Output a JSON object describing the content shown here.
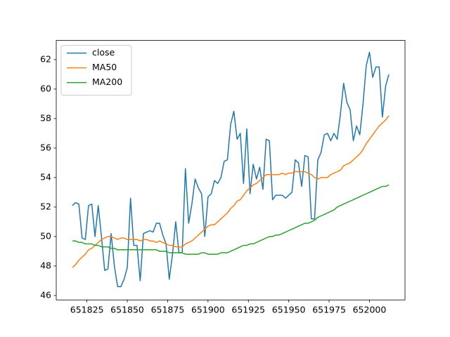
{
  "chart_data": {
    "type": "line",
    "x": [
      651816,
      651818,
      651820,
      651822,
      651824,
      651826,
      651828,
      651830,
      651832,
      651834,
      651836,
      651838,
      651840,
      651842,
      651844,
      651846,
      651848,
      651850,
      651852,
      651854,
      651856,
      651858,
      651860,
      651862,
      651864,
      651866,
      651868,
      651870,
      651872,
      651874,
      651876,
      651878,
      651880,
      651882,
      651884,
      651886,
      651888,
      651890,
      651892,
      651894,
      651896,
      651898,
      651900,
      651902,
      651904,
      651906,
      651908,
      651910,
      651912,
      651914,
      651916,
      651918,
      651920,
      651922,
      651924,
      651926,
      651928,
      651930,
      651932,
      651934,
      651936,
      651938,
      651940,
      651942,
      651944,
      651946,
      651948,
      651950,
      651952,
      651954,
      651956,
      651958,
      651960,
      651962,
      651964,
      651966,
      651968,
      651970,
      651972,
      651974,
      651976,
      651978,
      651980,
      651982,
      651984,
      651986,
      651988,
      651990,
      651992,
      651994,
      651996,
      651998,
      652000,
      652002,
      652004,
      652006,
      652008,
      652010,
      652012
    ],
    "series": [
      {
        "name": "close",
        "color": "#1f77b4",
        "values": [
          52.1,
          52.3,
          52.2,
          49.9,
          49.8,
          52.1,
          52.2,
          50.0,
          52.1,
          50.0,
          47.7,
          47.8,
          50.2,
          48.0,
          46.6,
          46.6,
          47.1,
          47.9,
          52.6,
          49.4,
          49.4,
          47.0,
          50.2,
          50.3,
          50.4,
          50.3,
          50.9,
          50.9,
          50.1,
          49.5,
          47.1,
          48.8,
          51.0,
          48.9,
          48.9,
          54.6,
          50.9,
          52.2,
          53.9,
          53.3,
          52.9,
          50.0,
          52.7,
          52.9,
          53.8,
          53.6,
          54.0,
          55.1,
          55.2,
          57.6,
          58.5,
          56.6,
          57.0,
          53.6,
          57.3,
          52.9,
          54.9,
          53.9,
          54.7,
          53.2,
          56.6,
          56.5,
          52.5,
          52.8,
          52.8,
          52.8,
          52.6,
          52.8,
          53.0,
          55.2,
          55.0,
          53.4,
          55.5,
          55.4,
          51.2,
          51.2,
          55.2,
          55.7,
          56.9,
          57.0,
          56.5,
          57.0,
          56.6,
          58.3,
          60.4,
          59.1,
          58.6,
          56.5,
          57.5,
          56.9,
          59.0,
          61.6,
          62.5,
          60.8,
          61.5,
          61.5,
          58.1,
          60.2,
          61.0
        ]
      },
      {
        "name": "MA50",
        "color": "#ff7f0e",
        "values": [
          47.9,
          48.1,
          48.4,
          48.6,
          48.8,
          49.1,
          49.2,
          49.4,
          49.6,
          49.8,
          49.9,
          50.0,
          50.0,
          49.9,
          49.8,
          49.9,
          49.9,
          49.8,
          49.8,
          49.8,
          49.8,
          49.7,
          49.8,
          49.8,
          49.7,
          49.7,
          49.6,
          49.7,
          49.6,
          49.5,
          49.4,
          49.4,
          49.3,
          49.3,
          49.3,
          49.5,
          49.6,
          49.7,
          49.9,
          50.1,
          50.3,
          50.5,
          50.7,
          50.8,
          50.8,
          51.0,
          51.2,
          51.4,
          51.6,
          51.9,
          52.1,
          52.4,
          52.5,
          52.8,
          53.1,
          53.3,
          53.5,
          53.6,
          53.8,
          54.0,
          54.2,
          54.2,
          54.2,
          54.2,
          54.2,
          54.3,
          54.2,
          54.3,
          54.3,
          54.4,
          54.4,
          54.4,
          54.4,
          54.3,
          54.2,
          54.0,
          53.9,
          54.0,
          54.0,
          54.0,
          54.2,
          54.3,
          54.4,
          54.5,
          54.8,
          54.9,
          55.0,
          55.2,
          55.4,
          55.6,
          55.9,
          56.3,
          56.6,
          56.9,
          57.2,
          57.5,
          57.7,
          57.9,
          58.2
        ]
      },
      {
        "name": "MA200",
        "color": "#2ca02c",
        "values": [
          49.7,
          49.7,
          49.6,
          49.6,
          49.5,
          49.5,
          49.5,
          49.4,
          49.4,
          49.3,
          49.3,
          49.3,
          49.2,
          49.2,
          49.1,
          49.1,
          49.1,
          49.1,
          49.1,
          49.1,
          49.1,
          49.1,
          49.1,
          49.1,
          49.1,
          49.1,
          49.1,
          49.0,
          49.0,
          49.0,
          48.9,
          48.9,
          48.9,
          48.9,
          48.9,
          48.8,
          48.8,
          48.8,
          48.8,
          48.8,
          48.9,
          48.9,
          48.8,
          48.8,
          48.8,
          48.8,
          48.9,
          48.9,
          48.9,
          49.0,
          49.1,
          49.2,
          49.3,
          49.4,
          49.4,
          49.5,
          49.5,
          49.6,
          49.7,
          49.8,
          49.9,
          50.0,
          50.0,
          50.1,
          50.1,
          50.2,
          50.3,
          50.4,
          50.5,
          50.6,
          50.7,
          50.8,
          50.9,
          50.9,
          51.0,
          51.1,
          51.3,
          51.4,
          51.5,
          51.6,
          51.7,
          51.8,
          52.0,
          52.1,
          52.2,
          52.3,
          52.4,
          52.5,
          52.6,
          52.7,
          52.8,
          52.9,
          53.0,
          53.1,
          53.2,
          53.3,
          53.4,
          53.4,
          53.5
        ]
      }
    ],
    "xlim": [
      651806,
      652022
    ],
    "xticks": [
      651825,
      651850,
      651875,
      651900,
      651925,
      651950,
      651975,
      652000
    ],
    "ylim": [
      45.7,
      63.3
    ],
    "yticks": [
      46,
      48,
      50,
      52,
      54,
      56,
      58,
      60,
      62
    ],
    "legend": "upper left"
  }
}
